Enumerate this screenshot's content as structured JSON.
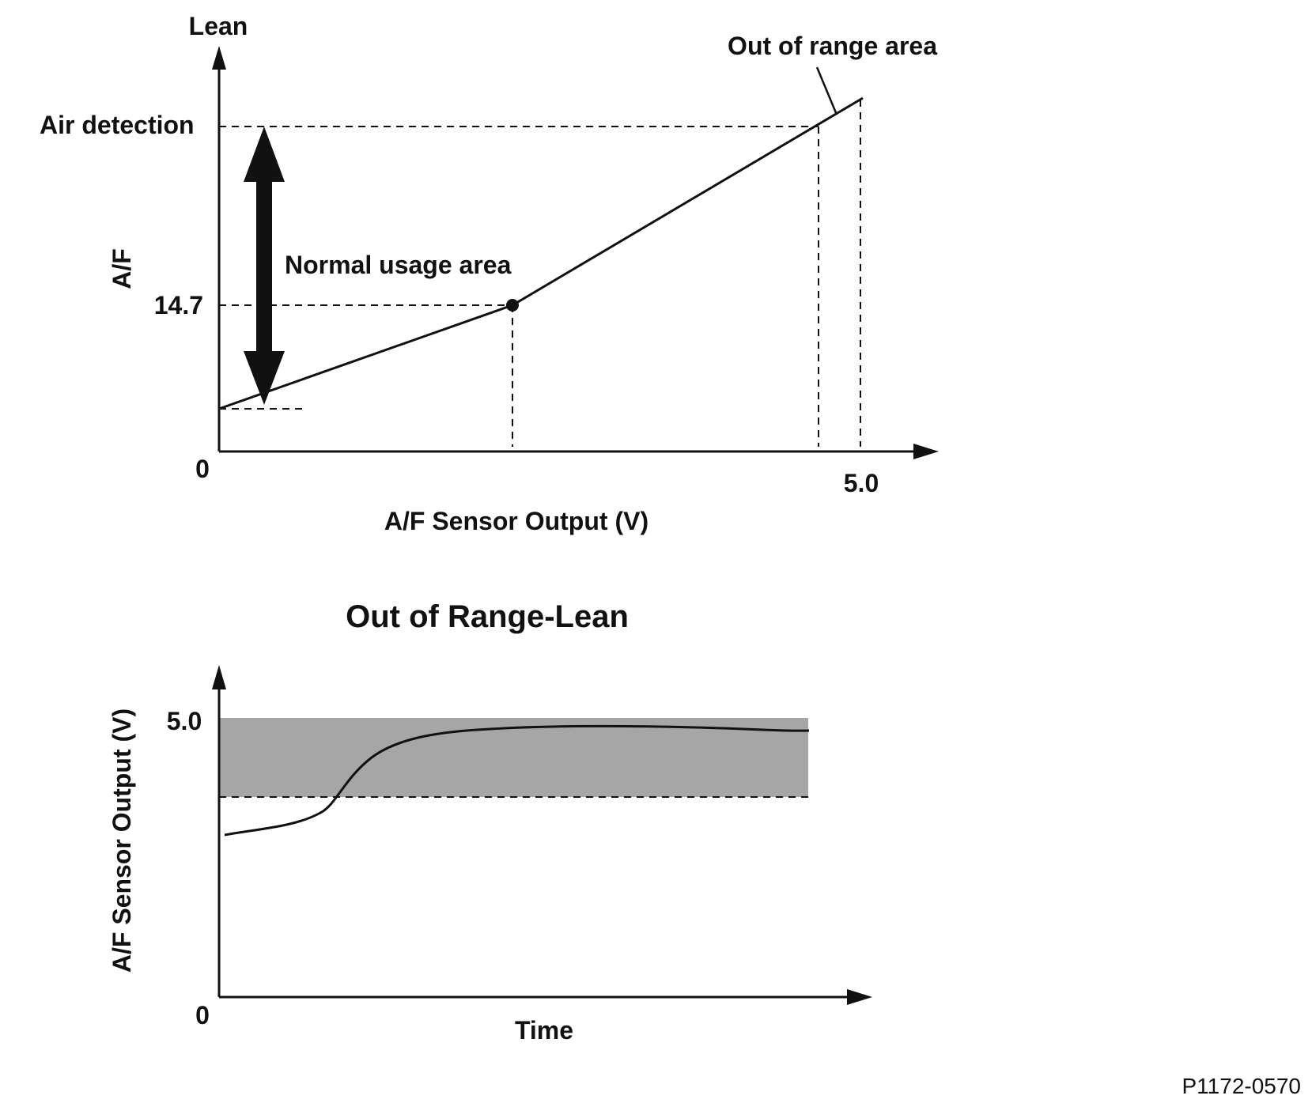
{
  "top_diagram": {
    "y_axis_end_label": "Lean",
    "y_axis_label": "A/F",
    "x_axis_label": "A/F Sensor Output (V)",
    "origin_label": "0",
    "x_tick_label": "5.0",
    "air_detection_label": "Air detection",
    "stoich_label": "14.7",
    "normal_area_label": "Normal usage area",
    "out_of_range_label": "Out of range area"
  },
  "bottom_diagram": {
    "title": "Out of Range-Lean",
    "y_axis_label": "A/F Sensor Output (V)",
    "x_axis_label": "Time",
    "origin_label": "0",
    "y_tick_label": "5.0"
  },
  "figure_id": "P1172-0570",
  "colors": {
    "ink": "#111111",
    "shaded_band": "#a6a6a6"
  }
}
